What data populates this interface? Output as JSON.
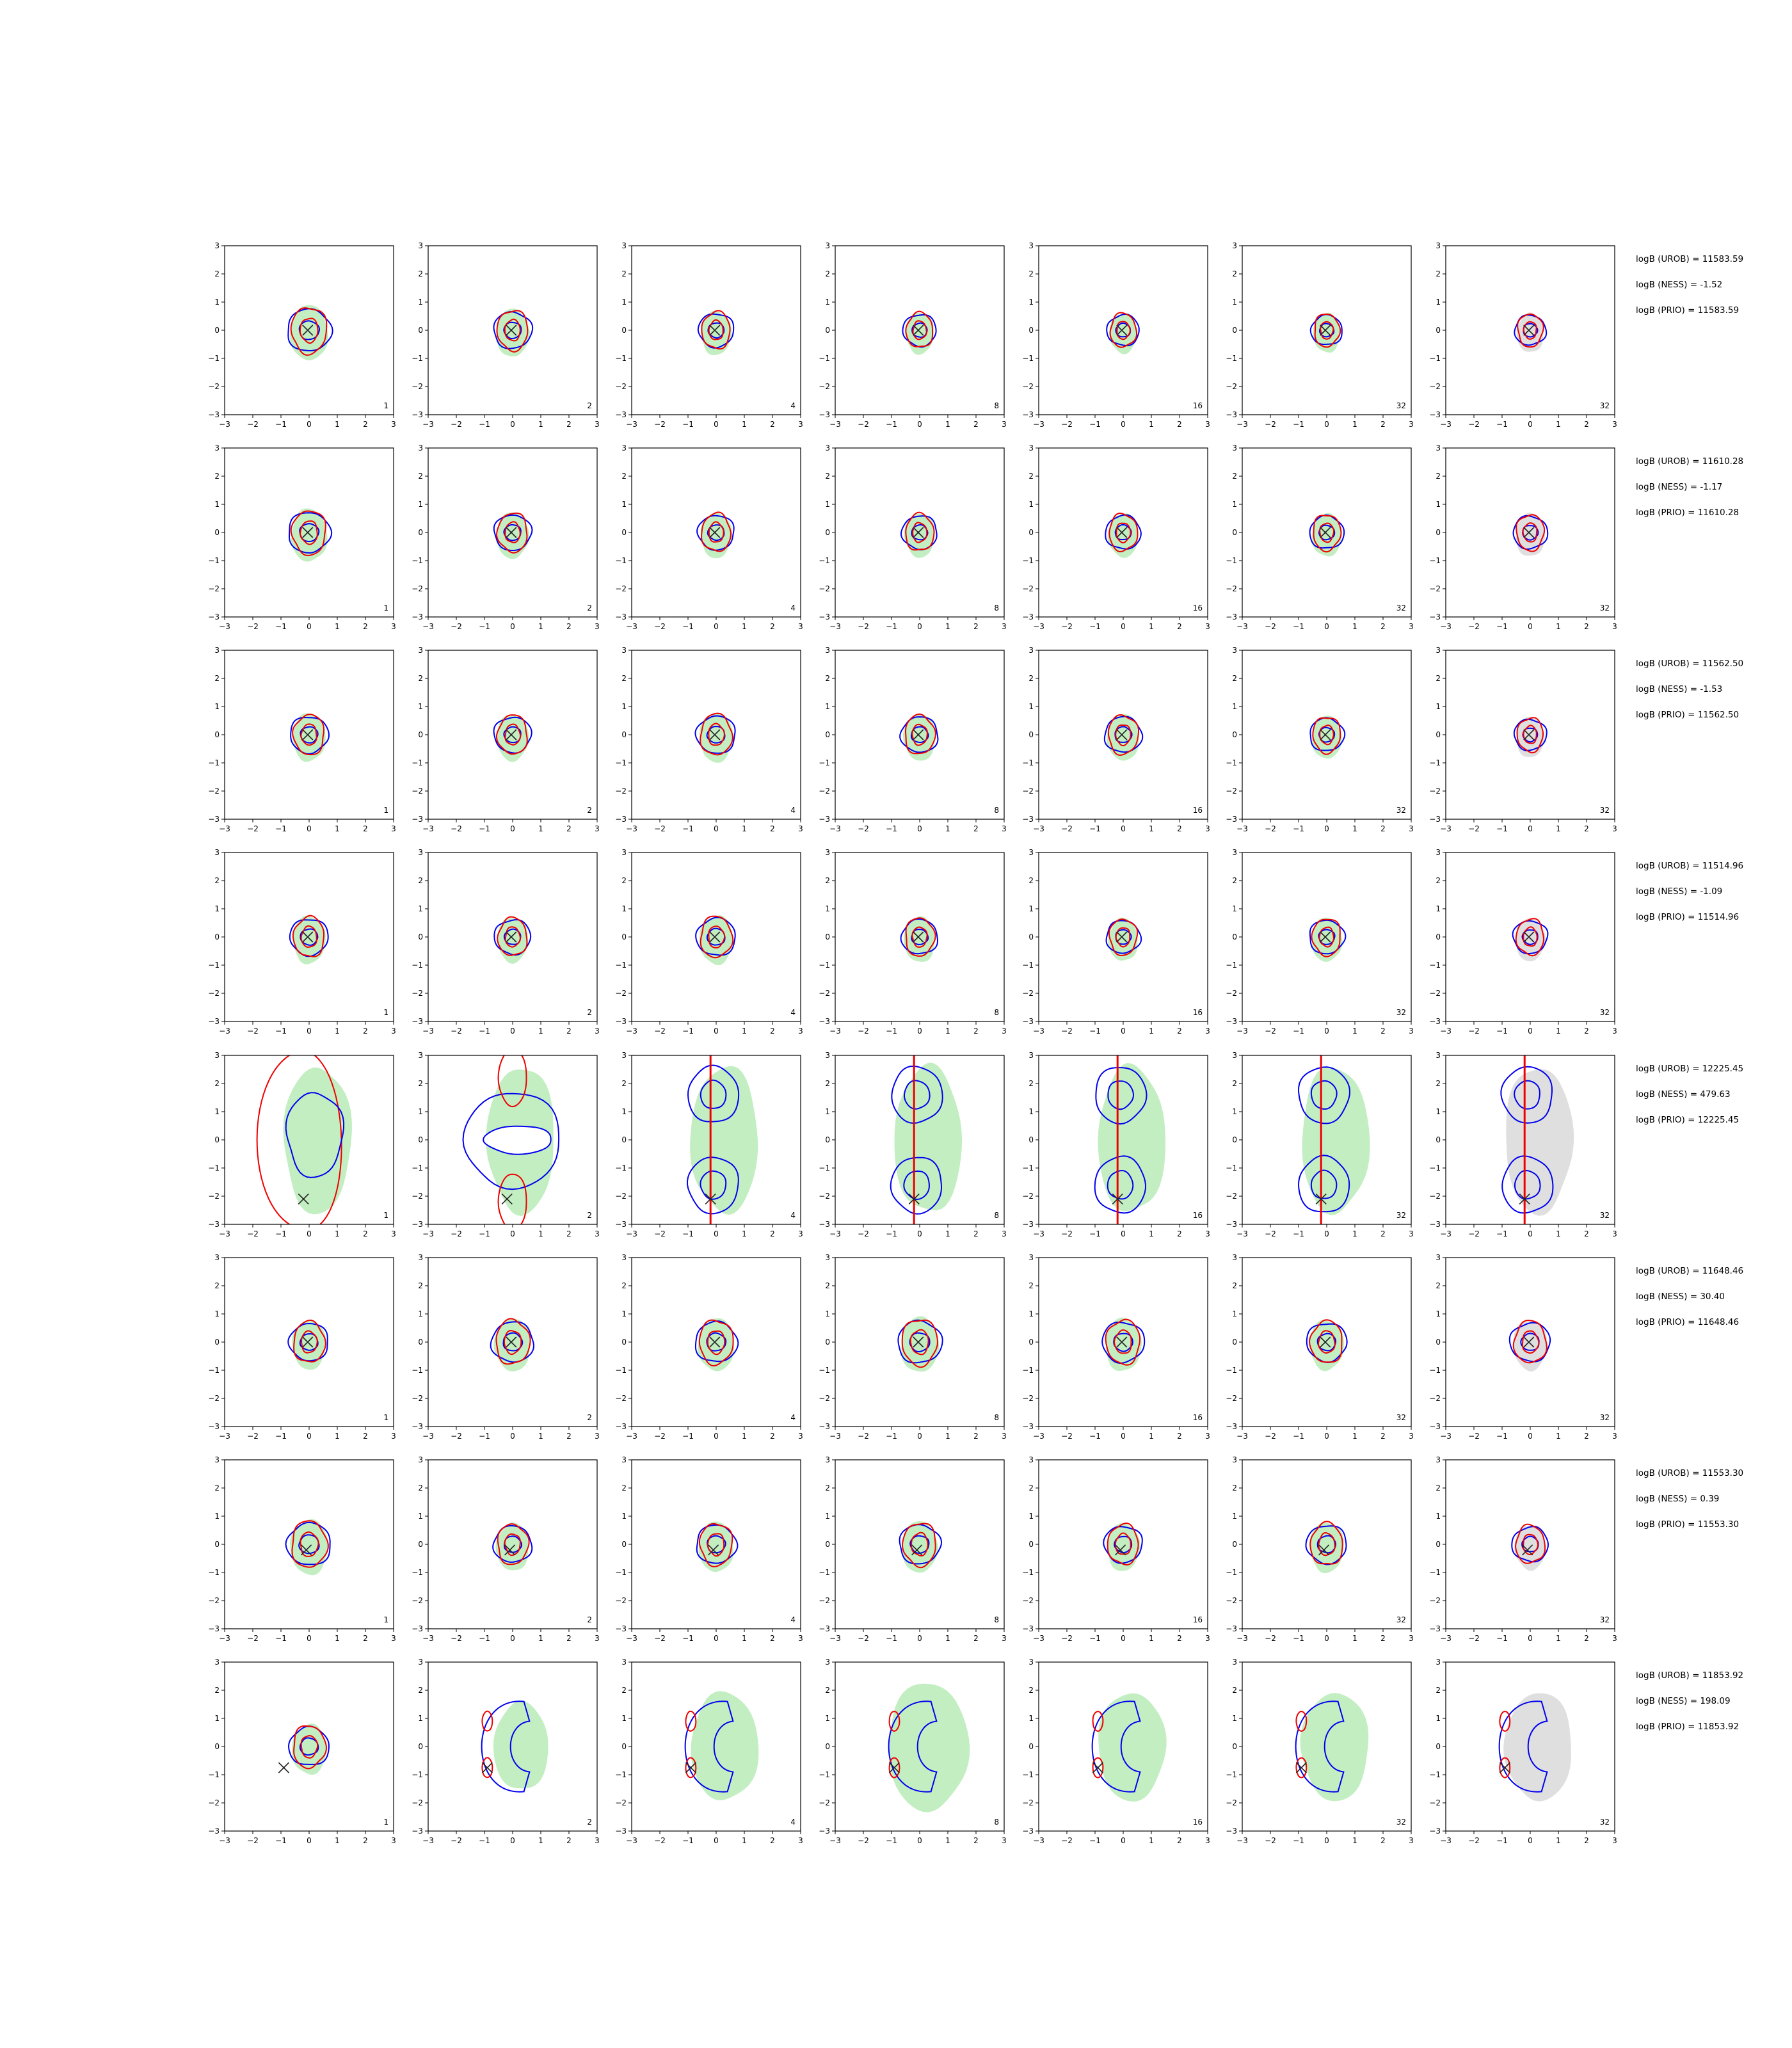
{
  "chart_data": {
    "type": "contour-grid",
    "rows": 8,
    "cols": 7,
    "xlim": [
      -3,
      3
    ],
    "ylim": [
      -3,
      3
    ],
    "xticks": [
      -3,
      -2,
      -1,
      0,
      1,
      2,
      3
    ],
    "yticks": [
      -3,
      -2,
      -1,
      0,
      1,
      2,
      3
    ],
    "tick_labels": [
      "−3",
      "−2",
      "−1",
      "0",
      "1",
      "2",
      "3"
    ],
    "panel_labels": [
      "1",
      "2",
      "4",
      "8",
      "16",
      "32",
      "32"
    ],
    "colors": {
      "blue_contour": "#0000ee",
      "red_contour": "#ee0000",
      "green_fill": "#90e090",
      "gray_fill": "#b8b8b8",
      "marker": "#222222"
    },
    "marker": "x",
    "rows_data": [
      {
        "marker": [
          -0.05,
          0.0
        ],
        "stats": [
          "logB (UROB) = 11583.59",
          "logB (NESS) = -1.52",
          "logB (PRIO) = 11583.59"
        ],
        "spread": [
          1.1,
          0.8,
          0.65,
          0.55,
          0.5,
          0.45,
          0.45
        ]
      },
      {
        "marker": [
          -0.05,
          0.0
        ],
        "stats": [
          "logB (UROB) = 11610.28",
          "logB (NESS) = -1.17",
          "logB (PRIO) = 11610.28"
        ],
        "spread": [
          1.0,
          0.75,
          0.7,
          0.65,
          0.65,
          0.6,
          0.6
        ]
      },
      {
        "marker": [
          -0.05,
          0.0
        ],
        "stats": [
          "logB (UROB) = 11562.50",
          "logB (NESS) = -1.53",
          "logB (PRIO) = 11562.50"
        ],
        "spread": [
          0.8,
          0.75,
          0.85,
          0.75,
          0.75,
          0.6,
          0.5
        ]
      },
      {
        "marker": [
          -0.05,
          0.0
        ],
        "stats": [
          "logB (UROB) = 11514.96",
          "logB (NESS) = -1.09",
          "logB (PRIO) = 11514.96"
        ],
        "spread": [
          0.8,
          0.7,
          0.85,
          0.7,
          0.6,
          0.65,
          0.6
        ]
      },
      {
        "marker": [
          -0.2,
          -2.1
        ],
        "stats": [
          "logB (UROB) = 12225.45",
          "logB (NESS) = 479.63",
          "logB (PRIO) = 12225.45"
        ],
        "spread": [
          2.0,
          1.8,
          1.6,
          1.4,
          1.4,
          1.4,
          1.4
        ],
        "bimodal": true
      },
      {
        "marker": [
          -0.05,
          0.0
        ],
        "stats": [
          "logB (UROB) = 11648.46",
          "logB (NESS) = 30.40",
          "logB (PRIO) = 11648.46"
        ],
        "spread": [
          0.85,
          1.0,
          1.0,
          1.1,
          1.0,
          0.9,
          0.9
        ]
      },
      {
        "marker": [
          -0.1,
          -0.2
        ],
        "stats": [
          "logB (UROB) = 11553.30",
          "logB (NESS) = 0.39",
          "logB (PRIO) = 11553.30"
        ],
        "spread": [
          1.1,
          0.8,
          0.9,
          0.95,
          0.8,
          0.9,
          0.7
        ]
      },
      {
        "marker": [
          -0.9,
          -0.75
        ],
        "stats": [
          "logB (UROB) = 11853.92",
          "logB (NESS) = 198.09",
          "logB (PRIO) = 11853.92"
        ],
        "spread": [
          0.9,
          1.3,
          1.6,
          1.9,
          1.6,
          1.6,
          1.6
        ],
        "crescent": true
      }
    ]
  }
}
